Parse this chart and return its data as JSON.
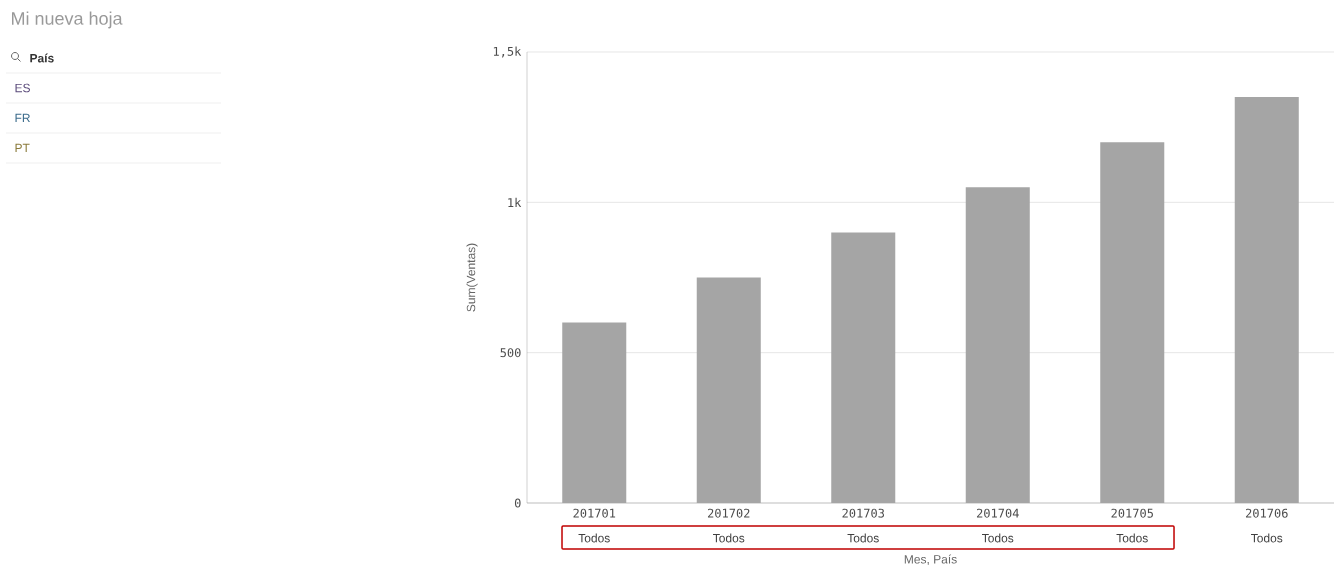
{
  "chart_data": {
    "type": "bar",
    "title": "Mi nueva hoja",
    "xlabel": "Mes, País",
    "ylabel": "Sum(Ventas)",
    "categories": [
      "201701",
      "201702",
      "201703",
      "201704",
      "201705",
      "201706"
    ],
    "values": [
      600,
      750,
      900,
      1050,
      1200,
      1350
    ],
    "color": "#a5a5a5",
    "ylim": [
      0,
      1500
    ],
    "yticks": [
      0,
      500,
      {
        "value": 1000,
        "label": "1k"
      },
      {
        "value": 1500,
        "label": "1,5k"
      }
    ],
    "grid": "y",
    "annotations": [
      "País",
      "ES",
      "FR",
      "PT",
      "Todos",
      "Todos",
      "Todos",
      "Todos",
      "Todos",
      "Todos"
    ]
  }
}
